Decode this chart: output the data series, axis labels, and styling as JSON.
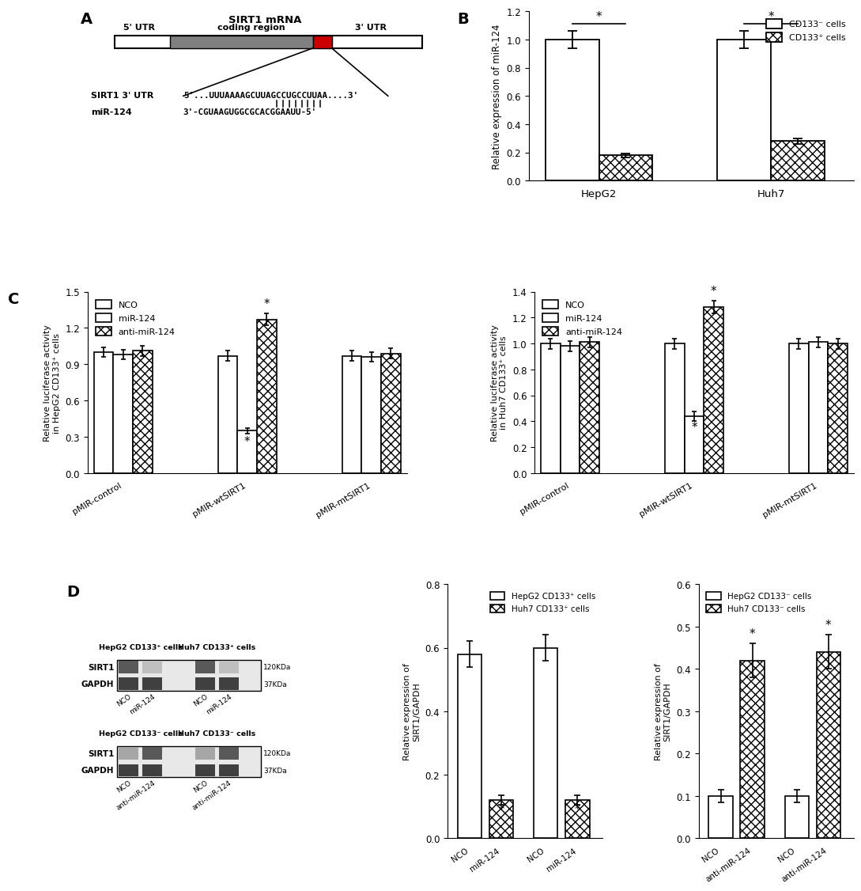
{
  "panel_B": {
    "groups": [
      "HepG2",
      "Huh7"
    ],
    "CD133neg_values": [
      1.0,
      1.0
    ],
    "CD133neg_errors": [
      0.06,
      0.06
    ],
    "CD133pos_values": [
      0.18,
      0.28
    ],
    "CD133pos_errors": [
      0.015,
      0.02
    ],
    "ylabel": "Relative expression of miR-124",
    "ylim": [
      0.0,
      1.2
    ],
    "yticks": [
      0.0,
      0.2,
      0.4,
      0.6,
      0.8,
      1.0,
      1.2
    ],
    "legend_neg": "CD133⁻ cells",
    "legend_pos": "CD133⁺ cells"
  },
  "panel_C_left": {
    "groups": [
      "pMIR-control",
      "pMIR-wtSIRT1",
      "pMIR-mtSIRT1"
    ],
    "NCO_values": [
      1.0,
      0.97,
      0.97
    ],
    "NCO_errors": [
      0.04,
      0.04,
      0.04
    ],
    "miR124_values": [
      0.98,
      0.35,
      0.96
    ],
    "miR124_errors": [
      0.04,
      0.025,
      0.04
    ],
    "antimiR_values": [
      1.01,
      1.27,
      0.99
    ],
    "antimiR_errors": [
      0.04,
      0.05,
      0.04
    ],
    "ylabel": "Relative luciferase activity\nin HepG2 CD133⁺ cells",
    "ylim": [
      0.0,
      1.5
    ],
    "yticks": [
      0.0,
      0.3,
      0.6,
      0.9,
      1.2,
      1.5
    ]
  },
  "panel_C_right": {
    "groups": [
      "pMIR-control",
      "pMIR-wtSIRT1",
      "pMIR-mtSIRT1"
    ],
    "NCO_values": [
      1.0,
      1.0,
      1.0
    ],
    "NCO_errors": [
      0.04,
      0.04,
      0.04
    ],
    "miR124_values": [
      0.98,
      0.44,
      1.01
    ],
    "miR124_errors": [
      0.04,
      0.035,
      0.04
    ],
    "antimiR_values": [
      1.01,
      1.28,
      1.0
    ],
    "antimiR_errors": [
      0.04,
      0.05,
      0.04
    ],
    "ylabel": "Relative luciferase activity\nin Huh7 CD133⁺ cells",
    "ylim": [
      0.0,
      1.4
    ],
    "yticks": [
      0.0,
      0.2,
      0.4,
      0.6,
      0.8,
      1.0,
      1.2,
      1.4
    ]
  },
  "panel_D_bar_left": {
    "groups": [
      "NCO",
      "miR-124",
      "NCO",
      "miR-124"
    ],
    "values": [
      0.58,
      0.12,
      0.6,
      0.12
    ],
    "errors": [
      0.04,
      0.015,
      0.04,
      0.015
    ],
    "ylabel": "Relative expression of\nSIRT1/GAPDH",
    "ylim": [
      0.0,
      0.8
    ],
    "yticks": [
      0.0,
      0.2,
      0.4,
      0.6,
      0.8
    ],
    "legend1": "HepG2 CD133⁺ cells",
    "legend2": "Huh7 CD133⁺ cells"
  },
  "panel_D_bar_right": {
    "groups": [
      "NCO",
      "anti-miR-124",
      "NCO",
      "anti-miR-124"
    ],
    "values": [
      0.1,
      0.42,
      0.1,
      0.44
    ],
    "errors": [
      0.015,
      0.04,
      0.015,
      0.04
    ],
    "ylabel": "Relative expression of\nSIRT1/GAPDH",
    "ylim": [
      0.0,
      0.6
    ],
    "yticks": [
      0.0,
      0.1,
      0.2,
      0.3,
      0.4,
      0.5,
      0.6
    ],
    "legend1": "HepG2 CD133⁻ cells",
    "legend2": "Huh7 CD133⁻ cells"
  },
  "wb_top": {
    "title_left": "HepG2 CD133⁺ cells",
    "title_right": "Huh7 CD133⁺ cells",
    "row_labels": [
      "SIRT1",
      "GAPDH"
    ],
    "kda_labels": [
      "120KDa",
      "37KDa"
    ],
    "col_labels": [
      "NCO",
      "miR-124",
      "NCO",
      "miR-124"
    ],
    "sirt1_grays": [
      0.35,
      0.75,
      0.35,
      0.75
    ],
    "gapdh_grays": [
      0.25,
      0.25,
      0.25,
      0.25
    ]
  },
  "wb_bottom": {
    "title_left": "HepG2 CD133⁻ cells",
    "title_right": "Huh7 CD133⁻ cells",
    "row_labels": [
      "SIRT1",
      "GAPDH"
    ],
    "kda_labels": [
      "120KDa",
      "37KDa"
    ],
    "col_labels": [
      "NCO",
      "anti-miR-124",
      "NCO",
      "anti-miR-124"
    ],
    "sirt1_grays": [
      0.65,
      0.35,
      0.65,
      0.35
    ],
    "gapdh_grays": [
      0.25,
      0.25,
      0.25,
      0.25
    ]
  }
}
